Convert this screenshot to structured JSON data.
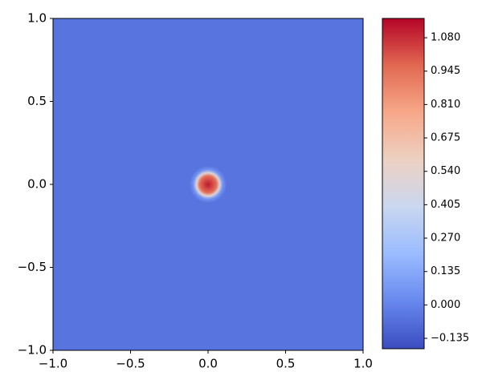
{
  "chart_data": {
    "type": "contourf",
    "xlim": [
      -1,
      1
    ],
    "ylim": [
      -1,
      1
    ],
    "xticks": [
      {
        "value": -1,
        "label": "−1.0"
      },
      {
        "value": -0.5,
        "label": "−0.5"
      },
      {
        "value": 0,
        "label": "0.0"
      },
      0.5,
      {
        "value": 1,
        "label": "1.0"
      }
    ],
    "yticks": [
      {
        "value": -1,
        "label": "−1.0"
      },
      {
        "value": -0.5,
        "label": "−0.5"
      },
      {
        "value": 0,
        "label": "0.0"
      },
      0.5,
      {
        "value": 1,
        "label": "1.0"
      }
    ],
    "clim": [
      -0.177,
      1.158
    ],
    "cticks": [
      {
        "value": -0.135,
        "label": "−0.135"
      },
      {
        "value": 0,
        "label": "0.000"
      },
      0.135,
      {
        "value": 0.27,
        "label": "0.270"
      },
      0.405,
      {
        "value": 0.54,
        "label": "0.540"
      },
      0.675,
      {
        "value": 0.81,
        "label": "0.810"
      },
      0.945,
      {
        "value": 1.08,
        "label": "1.080"
      }
    ],
    "colormap": [
      "#3b4cc0",
      "#6788ee",
      "#9abbff",
      "#c9d7f0",
      "#edd1c2",
      "#f7a889",
      "#e26952",
      "#b40426"
    ],
    "field_base": -0.05,
    "peak": {
      "x": 0,
      "y": 0,
      "value": 1.12,
      "radius": 0.12
    }
  }
}
